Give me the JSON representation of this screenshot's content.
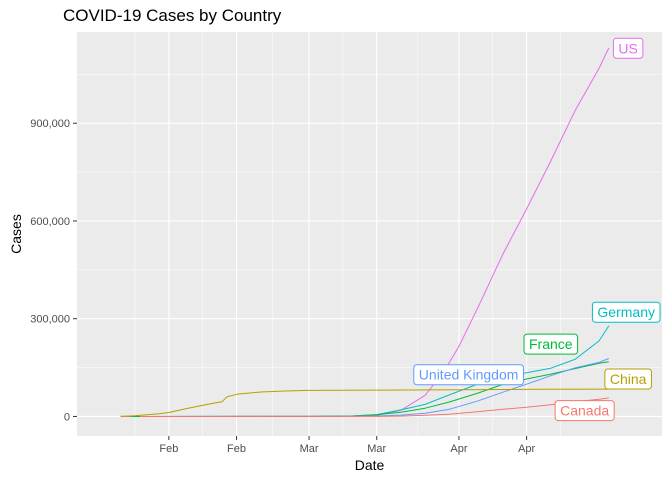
{
  "chart_data": {
    "type": "line",
    "title": "COVID-19 Cases by Country",
    "xlabel": "Date",
    "ylabel": "Cases",
    "x_axis": {
      "type": "date",
      "range": [
        "2020-01-13",
        "2020-05-13"
      ],
      "ticks": [
        {
          "date": "2020-02-01",
          "label": "Feb"
        },
        {
          "date": "2020-02-15",
          "label": "Feb"
        },
        {
          "date": "2020-03-01",
          "label": "Mar"
        },
        {
          "date": "2020-03-15",
          "label": "Mar"
        },
        {
          "date": "2020-04-01",
          "label": "Apr"
        },
        {
          "date": "2020-04-15",
          "label": "Apr"
        }
      ]
    },
    "y_axis": {
      "range": [
        -60000,
        1180000
      ],
      "ticks": [
        {
          "value": 0,
          "label": "0"
        },
        {
          "value": 300000,
          "label": "300,000"
        },
        {
          "value": 600000,
          "label": "600,000"
        },
        {
          "value": 900000,
          "label": "900,000"
        }
      ]
    },
    "grid": true,
    "legend": "none",
    "series": [
      {
        "name": "US",
        "label": "US",
        "color": "#E76BF3",
        "label_at": {
          "date": "2020-05-06",
          "value": 1130000
        },
        "points": [
          [
            "2020-01-22",
            1
          ],
          [
            "2020-02-15",
            15
          ],
          [
            "2020-03-01",
            100
          ],
          [
            "2020-03-10",
            1000
          ],
          [
            "2020-03-15",
            3500
          ],
          [
            "2020-03-20",
            19000
          ],
          [
            "2020-03-25",
            65000
          ],
          [
            "2020-03-29",
            140000
          ],
          [
            "2020-04-01",
            215000
          ],
          [
            "2020-04-05",
            337000
          ],
          [
            "2020-04-10",
            496000
          ],
          [
            "2020-04-15",
            637000
          ],
          [
            "2020-04-20",
            784000
          ],
          [
            "2020-04-25",
            938000
          ],
          [
            "2020-04-30",
            1069000
          ],
          [
            "2020-05-02",
            1131000
          ]
        ]
      },
      {
        "name": "Germany",
        "label": "Germany",
        "color": "#00BFC4",
        "label_at": {
          "date": "2020-05-06",
          "value": 320000
        },
        "points": [
          [
            "2020-01-27",
            1
          ],
          [
            "2020-03-01",
            130
          ],
          [
            "2020-03-10",
            1500
          ],
          [
            "2020-03-15",
            5800
          ],
          [
            "2020-03-20",
            20000
          ],
          [
            "2020-03-25",
            37000
          ],
          [
            "2020-03-30",
            66000
          ],
          [
            "2020-04-05",
            100000
          ],
          [
            "2020-04-10",
            120000
          ],
          [
            "2020-04-15",
            134000
          ],
          [
            "2020-04-20",
            148000
          ],
          [
            "2020-04-25",
            175000
          ],
          [
            "2020-04-30",
            232000
          ],
          [
            "2020-05-02",
            278000
          ]
        ]
      },
      {
        "name": "France",
        "label": "France",
        "color": "#00BA38",
        "label_at": {
          "date": "2020-04-20",
          "value": 222000
        },
        "points": [
          [
            "2020-01-24",
            2
          ],
          [
            "2020-03-01",
            130
          ],
          [
            "2020-03-10",
            1800
          ],
          [
            "2020-03-15",
            5400
          ],
          [
            "2020-03-20",
            12600
          ],
          [
            "2020-03-25",
            25200
          ],
          [
            "2020-03-30",
            44500
          ],
          [
            "2020-04-05",
            72000
          ],
          [
            "2020-04-10",
            98000
          ],
          [
            "2020-04-15",
            115000
          ],
          [
            "2020-04-20",
            130000
          ],
          [
            "2020-04-25",
            147000
          ],
          [
            "2020-04-30",
            163000
          ],
          [
            "2020-05-02",
            168000
          ]
        ]
      },
      {
        "name": "United Kingdom",
        "label": "United Kingdom",
        "color": "#619CFF",
        "label_at": {
          "date": "2020-04-03",
          "value": 128000
        },
        "points": [
          [
            "2020-01-31",
            2
          ],
          [
            "2020-03-01",
            36
          ],
          [
            "2020-03-10",
            380
          ],
          [
            "2020-03-15",
            1400
          ],
          [
            "2020-03-20",
            4000
          ],
          [
            "2020-03-25",
            9600
          ],
          [
            "2020-03-30",
            22000
          ],
          [
            "2020-04-05",
            48000
          ],
          [
            "2020-04-10",
            74000
          ],
          [
            "2020-04-15",
            99000
          ],
          [
            "2020-04-20",
            125000
          ],
          [
            "2020-04-25",
            149000
          ],
          [
            "2020-04-30",
            166000
          ],
          [
            "2020-05-02",
            178000
          ]
        ]
      },
      {
        "name": "China",
        "label": "China",
        "color": "#B79F00",
        "label_at": {
          "date": "2020-05-06",
          "value": 115000
        },
        "points": [
          [
            "2020-01-22",
            548
          ],
          [
            "2020-01-25",
            2000
          ],
          [
            "2020-01-30",
            8000
          ],
          [
            "2020-02-01",
            12000
          ],
          [
            "2020-02-05",
            25000
          ],
          [
            "2020-02-10",
            40000
          ],
          [
            "2020-02-12",
            45000
          ],
          [
            "2020-02-13",
            60000
          ],
          [
            "2020-02-15",
            68000
          ],
          [
            "2020-02-20",
            75000
          ],
          [
            "2020-02-25",
            78000
          ],
          [
            "2020-03-01",
            80000
          ],
          [
            "2020-03-15",
            81000
          ],
          [
            "2020-04-01",
            82000
          ],
          [
            "2020-04-17",
            83400
          ],
          [
            "2020-05-02",
            83900
          ]
        ]
      },
      {
        "name": "Canada",
        "label": "Canada",
        "color": "#F8766D",
        "label_at": {
          "date": "2020-04-27",
          "value": 18000
        },
        "points": [
          [
            "2020-01-26",
            1
          ],
          [
            "2020-03-01",
            24
          ],
          [
            "2020-03-10",
            100
          ],
          [
            "2020-03-15",
            300
          ],
          [
            "2020-03-20",
            1100
          ],
          [
            "2020-03-25",
            3400
          ],
          [
            "2020-03-30",
            7000
          ],
          [
            "2020-04-05",
            15000
          ],
          [
            "2020-04-10",
            22000
          ],
          [
            "2020-04-15",
            28000
          ],
          [
            "2020-04-20",
            36000
          ],
          [
            "2020-04-25",
            45000
          ],
          [
            "2020-04-30",
            53000
          ],
          [
            "2020-05-02",
            57000
          ]
        ]
      }
    ]
  }
}
